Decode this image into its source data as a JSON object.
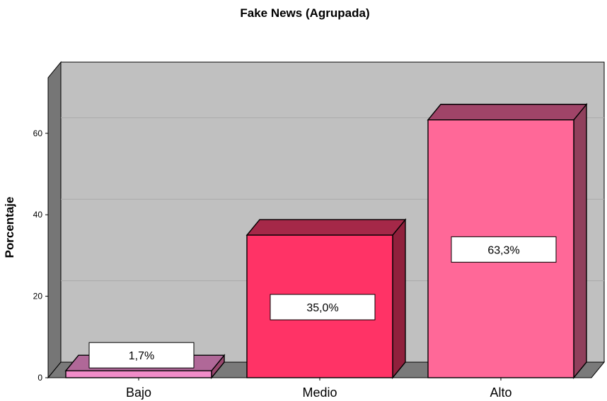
{
  "chart_data": {
    "type": "bar",
    "title": "Fake News (Agrupada)",
    "xlabel": "",
    "ylabel": "Porcentaje",
    "categories": [
      "Bajo",
      "Medio",
      "Alto"
    ],
    "values": [
      1.7,
      35.0,
      63.3
    ],
    "data_labels": [
      "1,7%",
      "35,0%",
      "63,3%"
    ],
    "yticks": [
      0,
      20,
      40,
      60
    ],
    "ylim": [
      0,
      77
    ],
    "grid": true,
    "style": "3d",
    "colors": {
      "bars": [
        {
          "front": "#f08cc8",
          "top": "#b06898",
          "side": "#98486e"
        },
        {
          "front": "#ff3366",
          "top": "#a52848",
          "side": "#90203c"
        },
        {
          "front": "#ff6898",
          "top": "#a04468",
          "side": "#90405c"
        }
      ],
      "wall": "#c0c0c0",
      "side_wall": "#767676",
      "floor": "#7a7a7a",
      "gridline": "#a9a9a9"
    }
  }
}
